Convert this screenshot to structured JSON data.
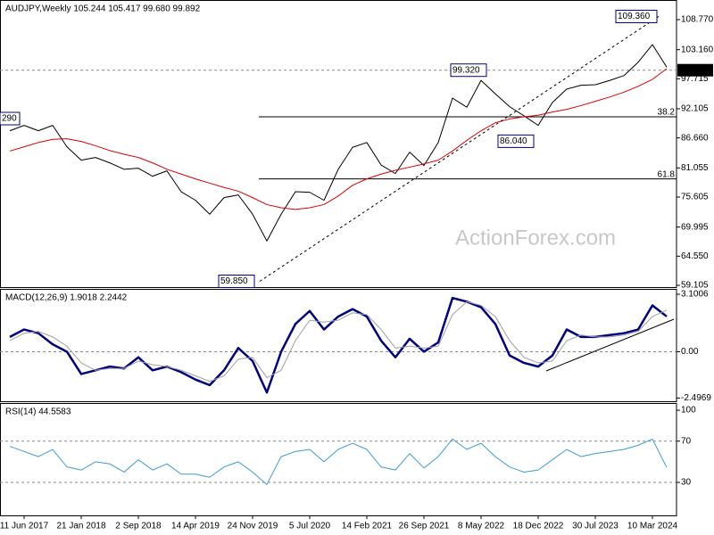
{
  "header": "AUDJPY,Weekly  105.244 105.417 99.680 99.892",
  "watermark": "ActionForex.com",
  "chart_data": [
    {
      "type": "line",
      "title": "AUDJPY,Weekly  105.244 105.417 99.680 99.892",
      "ylim": [
        58.77,
        112.44
      ],
      "yticks": [
        {
          "value": 108.77,
          "label": "108.770"
        },
        {
          "value": 103.16,
          "label": "103.160"
        },
        {
          "value": 97.715,
          "label": "97.715"
        },
        {
          "value": 92.105,
          "label": "92.105"
        },
        {
          "value": 86.66,
          "label": "86.660"
        },
        {
          "value": 81.055,
          "label": "81.055"
        },
        {
          "value": 75.605,
          "label": "75.605"
        },
        {
          "value": 69.995,
          "label": "69.995"
        },
        {
          "value": 64.55,
          "label": "64.550"
        },
        {
          "value": 59.105,
          "label": "59.105"
        }
      ],
      "series": [
        {
          "color": "#000000",
          "line_width": 1,
          "values": [
            88,
            89,
            88,
            89,
            85,
            82.5,
            83,
            82,
            80.8,
            81,
            79.5,
            80.5,
            76.6,
            75,
            72.4,
            75.5,
            76,
            72.4,
            67.4,
            72.4,
            76.6,
            76.5,
            75,
            80.8,
            84.9,
            85.8,
            81.6,
            80,
            84,
            81.5,
            85.8,
            94.1,
            92.4,
            97.4,
            94.9,
            92.5,
            90.8,
            89,
            93.3,
            95.8,
            96.5,
            96.6,
            97.4,
            98.3,
            100.8,
            104.1,
            99.892
          ]
        },
        {
          "color": "#dd0000",
          "line_width": 1,
          "values": [
            84.2,
            85,
            85.8,
            86.4,
            86.5,
            86,
            85.2,
            84.3,
            83.6,
            83,
            82,
            80.8,
            79.9,
            79,
            78.2,
            77.4,
            76.7,
            75.5,
            74.2,
            73.6,
            73.3,
            73.6,
            74.2,
            75.8,
            77.8,
            79,
            79.9,
            80.6,
            81.2,
            81.8,
            82.5,
            84.2,
            86.2,
            88,
            89.5,
            90.2,
            90.6,
            90.9,
            91.5,
            92,
            92.7,
            93.5,
            94.3,
            95.2,
            96.3,
            97.6,
            99.6
          ]
        }
      ],
      "levels": [
        {
          "value": 99.32,
          "dashed": true
        },
        {
          "value": 90.6,
          "label": "38.2"
        },
        {
          "value": 79.0,
          "label": "61.8"
        }
      ],
      "annotations": [
        {
          "label": "109.360",
          "value": 109.36
        },
        {
          "label": "99.320",
          "value": 99.32
        },
        {
          "label": "86.040",
          "value": 86.04
        },
        {
          "label": "59.850",
          "value": 59.85
        },
        {
          "label": "290"
        }
      ],
      "price_tag": {
        "label": "99.320",
        "value": 99.32
      }
    },
    {
      "type": "line",
      "title": "MACD(12,26,9) 1.9018 2.2442",
      "ylim": [
        -2.67,
        3.39
      ],
      "yticks": [
        3.1006,
        {
          "value": 0,
          "label": "0.00"
        },
        -2.4969
      ],
      "levels": [
        {
          "value": 0,
          "dashed": true
        }
      ],
      "series": [
        {
          "color": "#000080",
          "line_width": 2.5,
          "values": [
            0.8,
            1.2,
            1,
            0.4,
            0,
            -1.2,
            -1,
            -0.8,
            -0.9,
            -0.3,
            -1,
            -0.8,
            -1.1,
            -1.5,
            -1.8,
            -1,
            0.2,
            -0.5,
            -2.2,
            0,
            1.5,
            2.2,
            1.2,
            1.9,
            2.3,
            1.9,
            0.6,
            -0.3,
            0.7,
            0,
            0.5,
            2.9,
            2.7,
            2.4,
            1.5,
            -0.2,
            -0.6,
            -0.8,
            -0.2,
            1.2,
            0.8,
            0.8,
            0.9,
            1,
            1.2,
            2.5,
            1.9018
          ]
        },
        {
          "color": "#a0a0a0",
          "line_width": 1,
          "values": [
            0.6,
            1,
            1.1,
            0.8,
            0.3,
            -0.6,
            -1,
            -0.9,
            -0.9,
            -0.5,
            -0.7,
            -0.8,
            -1,
            -1.3,
            -1.6,
            -1.3,
            -0.4,
            -0.3,
            -1.4,
            -1,
            0.6,
            1.7,
            1.6,
            1.7,
            2.1,
            2,
            1.2,
            0.2,
            0.3,
            0.2,
            0.3,
            2,
            2.7,
            2.5,
            1.9,
            0.6,
            -0.3,
            -0.6,
            -0.5,
            0.6,
            0.9,
            0.8,
            0.8,
            0.9,
            1.1,
            1.9,
            2.2442
          ]
        }
      ]
    },
    {
      "type": "line",
      "title": "RSI(14) 44.5583",
      "ylim": [
        -2,
        107
      ],
      "yticks": [
        100,
        70,
        30
      ],
      "levels": [
        {
          "value": 70,
          "dashed": true
        },
        {
          "value": 30,
          "dashed": true
        }
      ],
      "categories": [
        null,
        "11 Jun 2017",
        null,
        null,
        null,
        "21 Jan 2018",
        null,
        null,
        null,
        "2 Sep 2018",
        null,
        null,
        null,
        "14 Apr 2019",
        null,
        null,
        null,
        "24 Nov 2019",
        null,
        null,
        null,
        "5 Jul 2020",
        null,
        null,
        null,
        "14 Feb 2021",
        null,
        null,
        null,
        "26 Sep 2021",
        null,
        null,
        null,
        "8 May 2022",
        null,
        null,
        null,
        "18 Dec 2022",
        null,
        null,
        null,
        "30 Jul 2023",
        null,
        null,
        null,
        "10 Mar 2024",
        null
      ],
      "series": [
        {
          "color": "#3d9bd6",
          "line_width": 1,
          "values": [
            65,
            60,
            55,
            62,
            45,
            42,
            50,
            48,
            40,
            52,
            42,
            48,
            38,
            38,
            35,
            45,
            50,
            40,
            28,
            55,
            60,
            62,
            50,
            62,
            68,
            62,
            45,
            42,
            58,
            44,
            55,
            72,
            62,
            68,
            55,
            45,
            40,
            42,
            52,
            62,
            55,
            58,
            60,
            62,
            66,
            72,
            44.5583
          ]
        }
      ]
    }
  ]
}
